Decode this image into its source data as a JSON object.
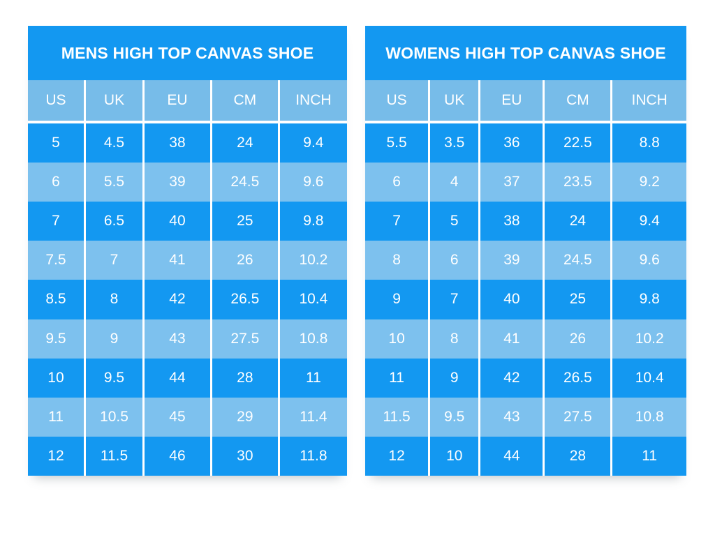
{
  "colors": {
    "dark_blue": "#1398f1",
    "light_blue": "#7dc1ee",
    "header_band_blue": "#77bce9",
    "divider_white": "#ffffff",
    "text_white": "#ffffff",
    "page_background": "#ffffff"
  },
  "chart_data": [
    {
      "type": "table",
      "title": "MENS HIGH TOP CANVAS SHOE",
      "columns": [
        "US",
        "UK",
        "EU",
        "CM",
        "INCH"
      ],
      "rows": [
        [
          "5",
          "4.5",
          "38",
          "24",
          "9.4"
        ],
        [
          "6",
          "5.5",
          "39",
          "24.5",
          "9.6"
        ],
        [
          "7",
          "6.5",
          "40",
          "25",
          "9.8"
        ],
        [
          "7.5",
          "7",
          "41",
          "26",
          "10.2"
        ],
        [
          "8.5",
          "8",
          "42",
          "26.5",
          "10.4"
        ],
        [
          "9.5",
          "9",
          "43",
          "27.5",
          "10.8"
        ],
        [
          "10",
          "9.5",
          "44",
          "28",
          "11"
        ],
        [
          "11",
          "10.5",
          "45",
          "29",
          "11.4"
        ],
        [
          "12",
          "11.5",
          "46",
          "30",
          "11.8"
        ]
      ],
      "layout_hints": {
        "row_striping": "dark-light alternating",
        "grid": "white vertical dividers only"
      }
    },
    {
      "type": "table",
      "title": "WOMENS HIGH TOP CANVAS SHOE",
      "columns": [
        "US",
        "UK",
        "EU",
        "CM",
        "INCH"
      ],
      "rows": [
        [
          "5.5",
          "3.5",
          "36",
          "22.5",
          "8.8"
        ],
        [
          "6",
          "4",
          "37",
          "23.5",
          "9.2"
        ],
        [
          "7",
          "5",
          "38",
          "24",
          "9.4"
        ],
        [
          "8",
          "6",
          "39",
          "24.5",
          "9.6"
        ],
        [
          "9",
          "7",
          "40",
          "25",
          "9.8"
        ],
        [
          "10",
          "8",
          "41",
          "26",
          "10.2"
        ],
        [
          "11",
          "9",
          "42",
          "26.5",
          "10.4"
        ],
        [
          "11.5",
          "9.5",
          "43",
          "27.5",
          "10.8"
        ],
        [
          "12",
          "10",
          "44",
          "28",
          "11"
        ]
      ],
      "layout_hints": {
        "row_striping": "dark-light alternating",
        "grid": "white vertical dividers only"
      }
    }
  ]
}
